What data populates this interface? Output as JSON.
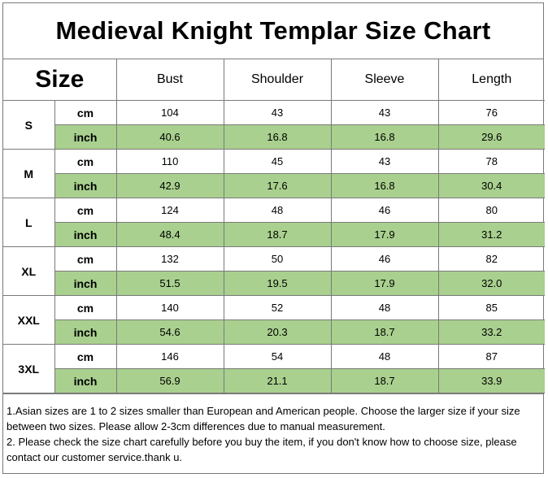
{
  "title": "Medieval Knight Templar Size Chart",
  "header": {
    "size": "Size",
    "columns": [
      "Bust",
      "Shoulder",
      "Sleeve",
      "Length"
    ]
  },
  "sizes": [
    {
      "label": "S",
      "cm": [
        "104",
        "43",
        "43",
        "76"
      ],
      "cm_unit": "cm",
      "inch_unit": "inch",
      "inch": [
        "40.6",
        "16.8",
        "16.8",
        "29.6"
      ]
    },
    {
      "label": "M",
      "cm": [
        "110",
        "45",
        "43",
        "78"
      ],
      "cm_unit": "cm",
      "inch_unit": "inch",
      "inch": [
        "42.9",
        "17.6",
        "16.8",
        "30.4"
      ]
    },
    {
      "label": "L",
      "cm": [
        "124",
        "48",
        "46",
        "80"
      ],
      "cm_unit": "cm",
      "inch_unit": "inch",
      "inch": [
        "48.4",
        "18.7",
        "17.9",
        "31.2"
      ]
    },
    {
      "label": "XL",
      "cm": [
        "132",
        "50",
        "46",
        "82"
      ],
      "cm_unit": "cm",
      "inch_unit": "inch",
      "inch": [
        "51.5",
        "19.5",
        "17.9",
        "32.0"
      ]
    },
    {
      "label": "XXL",
      "cm": [
        "140",
        "52",
        "48",
        "85"
      ],
      "cm_unit": "cm",
      "inch_unit": "inch",
      "inch": [
        "54.6",
        "20.3",
        "18.7",
        "33.2"
      ]
    },
    {
      "label": "3XL",
      "cm": [
        "146",
        "54",
        "48",
        "87"
      ],
      "cm_unit": "cm",
      "inch_unit": "inch",
      "inch": [
        "56.9",
        "21.1",
        "18.7",
        "33.9"
      ]
    }
  ],
  "notes": [
    "1.Asian sizes are 1 to 2 sizes smaller than European and American people. Choose the larger size if your size between two sizes. Please allow 2-3cm differences due to manual measurement.",
    "2. Please check the size chart carefully before you buy the item, if you don't know how to choose size, please contact our customer  service.thank u."
  ],
  "colors": {
    "inch_row_fill": "#a9d08e",
    "border": "#7a7a7a"
  }
}
